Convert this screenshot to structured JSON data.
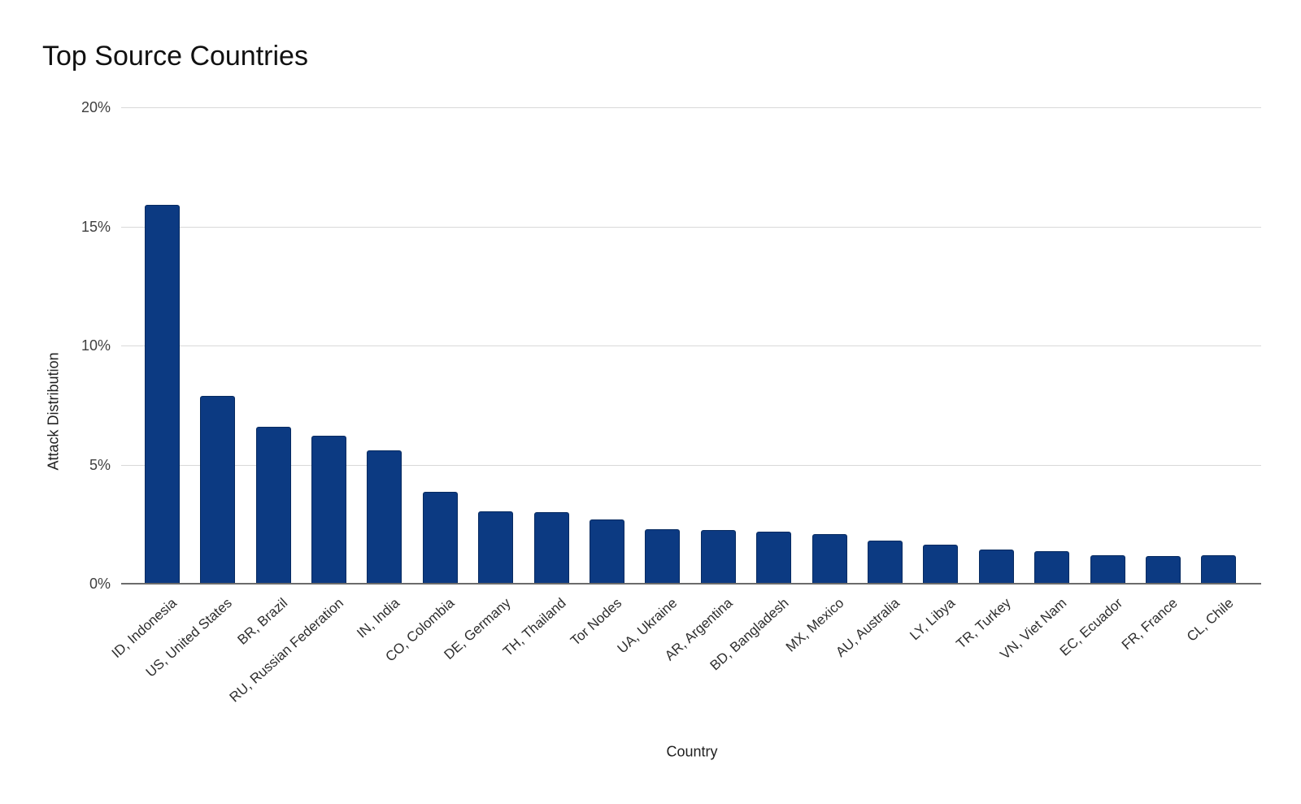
{
  "chart_data": {
    "type": "bar",
    "title": "Top Source Countries",
    "xlabel": "Country",
    "ylabel": "Attack Distribution",
    "ylim": [
      0,
      20
    ],
    "yticks": [
      "0%",
      "5%",
      "10%",
      "15%",
      "20%"
    ],
    "grid": true,
    "legend": "none",
    "bar_color": "#0c3a82",
    "bar_border_color": "#062a60",
    "grid_color": "#d9d9d9",
    "axis_line_color": "#6b6b6b",
    "categories": [
      "ID, Indonesia",
      "US, United States",
      "BR, Brazil",
      "RU, Russian Federation",
      "IN, India",
      "CO, Colombia",
      "DE, Germany",
      "TH, Thailand",
      "Tor Nodes",
      "UA, Ukraine",
      "AR, Argentina",
      "BD, Bangladesh",
      "MX, Mexico",
      "AU, Australia",
      "LY, Libya",
      "TR, Turkey",
      "VN, Viet Nam",
      "EC, Ecuador",
      "FR, France",
      "CL, Chile"
    ],
    "values": [
      15.9,
      7.9,
      6.6,
      6.2,
      5.6,
      3.85,
      3.05,
      3.0,
      2.7,
      2.3,
      2.25,
      2.2,
      2.1,
      1.8,
      1.65,
      1.45,
      1.35,
      1.2,
      1.15,
      1.2
    ]
  }
}
